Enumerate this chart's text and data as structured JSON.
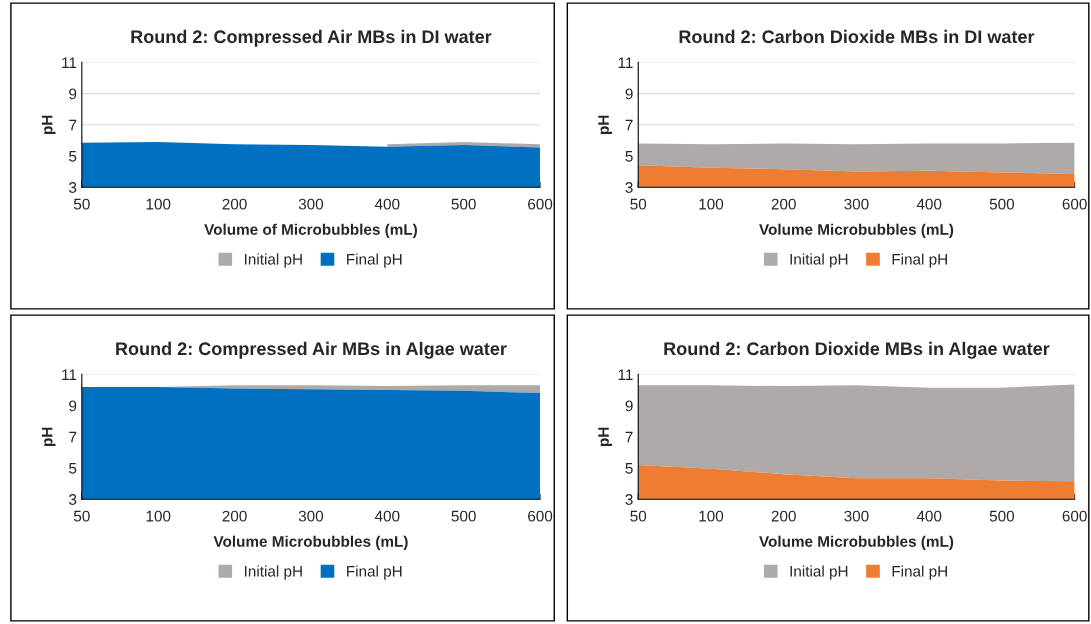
{
  "chart_data": [
    {
      "type": "area",
      "title": "Round 2: Compressed Air MBs in DI water",
      "xlabel": "Volume of Microbubbles (mL)",
      "ylabel": "pH",
      "categories": [
        "50",
        "100",
        "200",
        "300",
        "400",
        "500",
        "600"
      ],
      "ylim": [
        3,
        11
      ],
      "yticks": [
        3,
        5,
        7,
        9,
        11
      ],
      "grid": "y",
      "legend": "bottom",
      "series": [
        {
          "name": "Initial pH",
          "color": "#adaaa9",
          "values": [
            null,
            null,
            null,
            null,
            5.75,
            5.9,
            5.75
          ]
        },
        {
          "name": "Final pH",
          "color": "#0070c0",
          "values": [
            5.85,
            5.9,
            5.75,
            5.7,
            5.6,
            5.7,
            5.55
          ]
        }
      ]
    },
    {
      "type": "area",
      "title": "Round 2: Carbon Dioxide MBs in DI water",
      "xlabel": "Volume Microbubbles (mL)",
      "ylabel": "pH",
      "categories": [
        "50",
        "100",
        "200",
        "300",
        "400",
        "500",
        "600"
      ],
      "ylim": [
        3,
        11
      ],
      "yticks": [
        3,
        5,
        7,
        9,
        11
      ],
      "grid": "y",
      "legend": "bottom",
      "series": [
        {
          "name": "Initial pH",
          "color": "#adaaa9",
          "values": [
            5.8,
            5.75,
            5.8,
            5.75,
            5.8,
            5.8,
            5.85
          ]
        },
        {
          "name": "Final pH",
          "color": "#ed7d31",
          "values": [
            4.4,
            4.25,
            4.15,
            4.0,
            4.05,
            3.95,
            3.85
          ]
        }
      ]
    },
    {
      "type": "area",
      "title": "Round 2: Compressed Air MBs in Algae water",
      "xlabel": "Volume Microbubbles (mL)",
      "ylabel": "pH",
      "categories": [
        "50",
        "100",
        "200",
        "300",
        "400",
        "500",
        "600"
      ],
      "ylim": [
        3,
        11
      ],
      "yticks": [
        3,
        5,
        7,
        9,
        11
      ],
      "grid": "y",
      "legend": "bottom",
      "series": [
        {
          "name": "Initial pH",
          "color": "#adaaa9",
          "values": [
            null,
            10.2,
            10.3,
            10.3,
            10.25,
            10.3,
            10.3
          ]
        },
        {
          "name": "Final pH",
          "color": "#0070c0",
          "values": [
            10.2,
            10.2,
            10.1,
            10.05,
            10.0,
            9.95,
            9.8
          ]
        }
      ]
    },
    {
      "type": "area",
      "title": "Round 2: Carbon Dioxide MBs in Algae water",
      "xlabel": "Volume Microbubbles (mL)",
      "ylabel": "pH",
      "categories": [
        "50",
        "100",
        "200",
        "300",
        "400",
        "500",
        "600"
      ],
      "ylim": [
        3,
        11
      ],
      "yticks": [
        3,
        5,
        7,
        9,
        11
      ],
      "grid": "y",
      "legend": "bottom",
      "series": [
        {
          "name": "Initial pH",
          "color": "#adaaa9",
          "values": [
            10.3,
            10.3,
            10.25,
            10.3,
            10.15,
            10.15,
            10.35
          ]
        },
        {
          "name": "Final pH",
          "color": "#ed7d31",
          "values": [
            5.2,
            4.95,
            4.6,
            4.35,
            4.35,
            4.2,
            4.15
          ]
        }
      ]
    }
  ]
}
